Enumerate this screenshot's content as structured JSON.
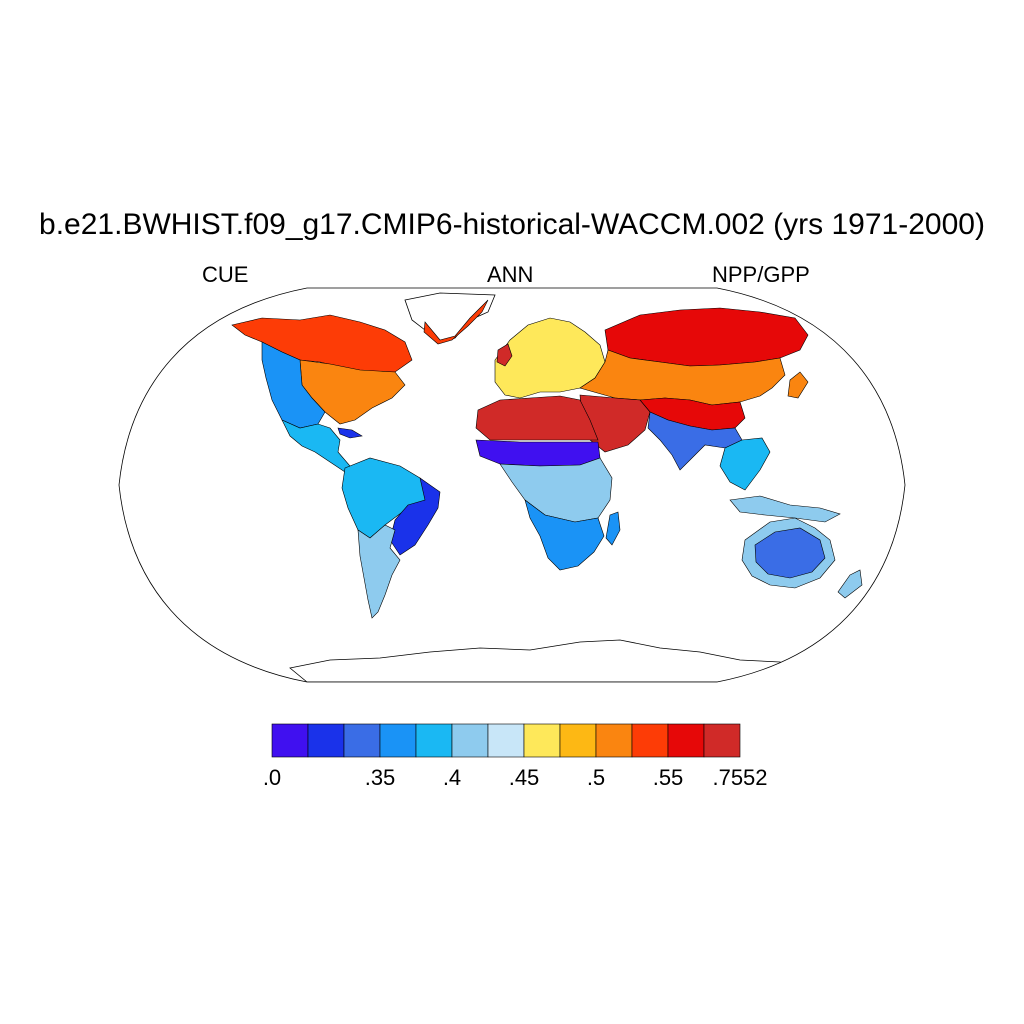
{
  "title": "b.e21.BWHIST.f09_g17.CMIP6-historical-WACCM.002 (yrs 1971-2000)",
  "left_string": "CUE",
  "center_string": "ANN",
  "right_string": "NPP/GPP",
  "colorbar": {
    "colors": [
      "#4010f0",
      "#1a32ea",
      "#3a6de6",
      "#1a93f6",
      "#1ab8f3",
      "#8ecbee",
      "#c8e6f8",
      "#fee85a",
      "#fdb814",
      "#fa8510",
      "#fd3c06",
      "#e60808",
      "#d02a28"
    ],
    "labels": [
      {
        "after_box": 0,
        "text": ".0"
      },
      {
        "after_box": 2,
        "text": ".35"
      },
      {
        "after_box": 4,
        "text": ".4"
      },
      {
        "after_box": 6,
        "text": ".45"
      },
      {
        "after_box": 8,
        "text": ".5"
      },
      {
        "after_box": 10,
        "text": ".55"
      },
      {
        "after_box": 12,
        "text": ".7552"
      }
    ]
  },
  "map": {
    "projection": "robinson",
    "regions": [
      {
        "name": "canada-arctic",
        "color": "#fd3c06"
      },
      {
        "name": "north-america-east",
        "color": "#fa8510"
      },
      {
        "name": "north-america-west",
        "color": "#1a93f6"
      },
      {
        "name": "mexico-central-america",
        "color": "#1ab8f3"
      },
      {
        "name": "amazon",
        "color": "#1ab8f3"
      },
      {
        "name": "brazil-east",
        "color": "#1a32ea"
      },
      {
        "name": "south-america-south",
        "color": "#8ecbee"
      },
      {
        "name": "greenland-coast",
        "color": "#fd3c06"
      },
      {
        "name": "europe",
        "color": "#fee85a"
      },
      {
        "name": "siberia",
        "color": "#e60808"
      },
      {
        "name": "central-asia",
        "color": "#fa8510"
      },
      {
        "name": "tibet",
        "color": "#e60808"
      },
      {
        "name": "south-asia",
        "color": "#3a6de6"
      },
      {
        "name": "southeast-asia",
        "color": "#1ab8f3"
      },
      {
        "name": "sahara",
        "color": "#d02a28"
      },
      {
        "name": "sahel",
        "color": "#4010f0"
      },
      {
        "name": "central-africa",
        "color": "#8ecbee"
      },
      {
        "name": "southern-africa",
        "color": "#1a93f6"
      },
      {
        "name": "australia-interior",
        "color": "#3a6de6"
      },
      {
        "name": "australia-rim",
        "color": "#8ecbee"
      }
    ]
  }
}
